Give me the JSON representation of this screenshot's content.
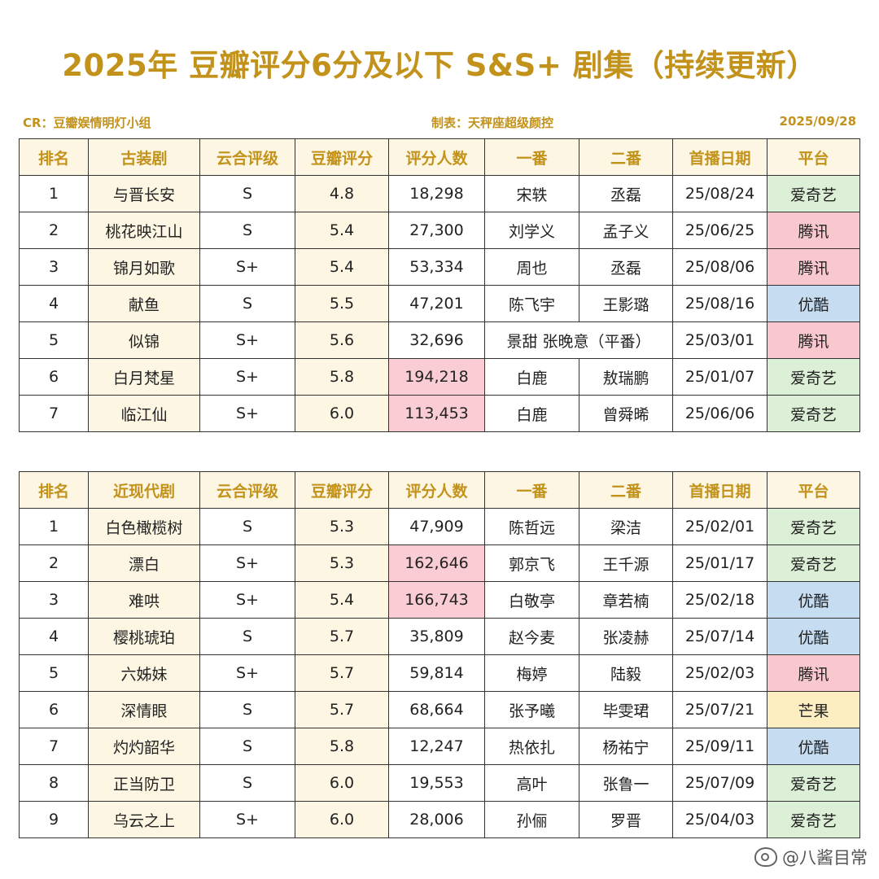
{
  "title": "2025年 豆瓣评分6分及以下 S&S+ 剧集（持续更新）",
  "meta": {
    "cr": "CR：豆瓣娱情明灯小组",
    "maker": "制表：天秤座超级颜控",
    "date": "2025/09/28"
  },
  "colors": {
    "accent": "#c2921a",
    "header_bg": "#fdf6e3",
    "highlight_bg": "#f9cdd3",
    "highlight_text": "#d0475c",
    "iqiyi": "#dcefd7",
    "tencent": "#f9c8cf",
    "youku": "#c6dcf0",
    "mango": "#fdeec2"
  },
  "tables": [
    {
      "headers": [
        "排名",
        "古装剧",
        "云合评级",
        "豆瓣评分",
        "评分人数",
        "一番",
        "二番",
        "首播日期",
        "平台"
      ],
      "rows": [
        {
          "rank": "1",
          "title": "与晋长安",
          "grade": "S",
          "score": "4.8",
          "count": "18,298",
          "hot": false,
          "lead1": "宋轶",
          "lead2": "丞磊",
          "date": "25/08/24",
          "platform": "爱奇艺",
          "pclass": "p-iqiyi"
        },
        {
          "rank": "2",
          "title": "桃花映江山",
          "grade": "S",
          "score": "5.4",
          "count": "27,300",
          "hot": false,
          "lead1": "刘学义",
          "lead2": "孟子义",
          "date": "25/06/25",
          "platform": "腾讯",
          "pclass": "p-tencent"
        },
        {
          "rank": "3",
          "title": "锦月如歌",
          "grade": "S+",
          "score": "5.4",
          "count": "53,334",
          "hot": false,
          "lead1": "周也",
          "lead2": "丞磊",
          "date": "25/08/06",
          "platform": "腾讯",
          "pclass": "p-tencent"
        },
        {
          "rank": "4",
          "title": "献鱼",
          "grade": "S",
          "score": "5.5",
          "count": "47,201",
          "hot": false,
          "lead1": "陈飞宇",
          "lead2": "王影璐",
          "date": "25/08/16",
          "platform": "优酷",
          "pclass": "p-youku"
        },
        {
          "rank": "5",
          "title": "似锦",
          "grade": "S+",
          "score": "5.6",
          "count": "32,696",
          "hot": false,
          "lead_merged": "景甜  张晚意（平番）",
          "date": "25/03/01",
          "platform": "腾讯",
          "pclass": "p-tencent"
        },
        {
          "rank": "6",
          "title": "白月梵星",
          "grade": "S+",
          "score": "5.8",
          "count": "194,218",
          "hot": true,
          "lead1": "白鹿",
          "lead2": "敖瑞鹏",
          "date": "25/01/07",
          "platform": "爱奇艺",
          "pclass": "p-iqiyi"
        },
        {
          "rank": "7",
          "title": "临江仙",
          "grade": "S+",
          "score": "6.0",
          "count": "113,453",
          "hot": true,
          "lead1": "白鹿",
          "lead2": "曾舜晞",
          "date": "25/06/06",
          "platform": "爱奇艺",
          "pclass": "p-iqiyi"
        }
      ]
    },
    {
      "headers": [
        "排名",
        "近现代剧",
        "云合评级",
        "豆瓣评分",
        "评分人数",
        "一番",
        "二番",
        "首播日期",
        "平台"
      ],
      "rows": [
        {
          "rank": "1",
          "title": "白色橄榄树",
          "grade": "S",
          "score": "5.3",
          "count": "47,909",
          "hot": false,
          "lead1": "陈哲远",
          "lead2": "梁洁",
          "date": "25/02/01",
          "platform": "爱奇艺",
          "pclass": "p-iqiyi"
        },
        {
          "rank": "2",
          "title": "漂白",
          "grade": "S+",
          "score": "5.3",
          "count": "162,646",
          "hot": true,
          "lead1": "郭京飞",
          "lead2": "王千源",
          "date": "25/01/17",
          "platform": "爱奇艺",
          "pclass": "p-iqiyi"
        },
        {
          "rank": "3",
          "title": "难哄",
          "grade": "S+",
          "score": "5.4",
          "count": "166,743",
          "hot": true,
          "lead1": "白敬亭",
          "lead2": "章若楠",
          "date": "25/02/18",
          "platform": "优酷",
          "pclass": "p-youku"
        },
        {
          "rank": "4",
          "title": "樱桃琥珀",
          "grade": "S",
          "score": "5.7",
          "count": "35,809",
          "hot": false,
          "lead1": "赵今麦",
          "lead2": "张凌赫",
          "date": "25/07/14",
          "platform": "优酷",
          "pclass": "p-youku"
        },
        {
          "rank": "5",
          "title": "六姊妹",
          "grade": "S+",
          "score": "5.7",
          "count": "59,814",
          "hot": false,
          "lead1": "梅婷",
          "lead2": "陆毅",
          "date": "25/02/03",
          "platform": "腾讯",
          "pclass": "p-tencent"
        },
        {
          "rank": "6",
          "title": "深情眼",
          "grade": "S",
          "score": "5.7",
          "count": "68,664",
          "hot": false,
          "lead1": "张予曦",
          "lead2": "毕雯珺",
          "date": "25/07/21",
          "platform": "芒果",
          "pclass": "p-mango"
        },
        {
          "rank": "7",
          "title": "灼灼韶华",
          "grade": "S",
          "score": "5.8",
          "count": "12,247",
          "hot": false,
          "lead1": "热依扎",
          "lead2": "杨祐宁",
          "date": "25/09/11",
          "platform": "优酷",
          "pclass": "p-youku"
        },
        {
          "rank": "8",
          "title": "正当防卫",
          "grade": "S",
          "score": "6.0",
          "count": "19,553",
          "hot": false,
          "lead1": "高叶",
          "lead2": "张鲁一",
          "date": "25/07/09",
          "platform": "爱奇艺",
          "pclass": "p-iqiyi"
        },
        {
          "rank": "9",
          "title": "乌云之上",
          "grade": "S+",
          "score": "6.0",
          "count": "28,006",
          "hot": false,
          "lead1": "孙俪",
          "lead2": "罗晋",
          "date": "25/04/03",
          "platform": "爱奇艺",
          "pclass": "p-iqiyi"
        }
      ]
    }
  ],
  "watermark": "@八酱目常",
  "watermark_icon": "weibo-icon"
}
